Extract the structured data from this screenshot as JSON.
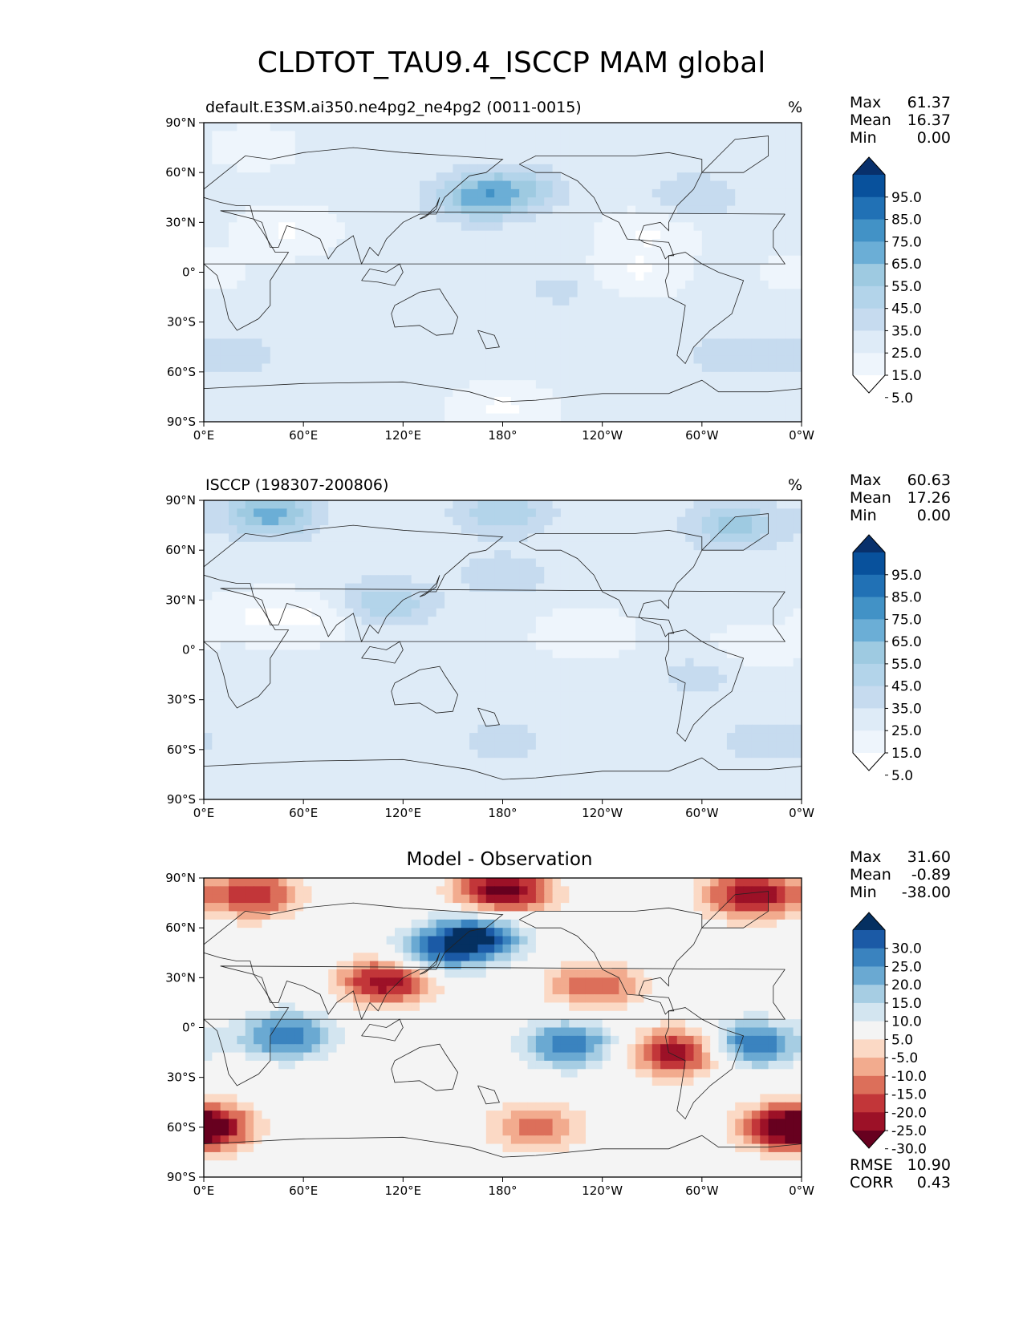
{
  "title": "CLDTOT_TAU9.4_ISCCP MAM global",
  "x_ticks": [
    "0°E",
    "60°E",
    "120°E",
    "180°",
    "120°W",
    "60°W",
    "0°W"
  ],
  "y_ticks": [
    "90°N",
    "60°N",
    "30°N",
    "0°",
    "30°S",
    "60°S",
    "90°S"
  ],
  "panels": [
    {
      "title": "default.E3SM.ai350.ne4pg2_ne4pg2 (0011-0015)",
      "units": "%",
      "stats": {
        "Max": "61.37",
        "Mean": "16.37",
        "Min": "0.00"
      }
    },
    {
      "title": "ISCCP (198307-200806)",
      "units": "%",
      "stats": {
        "Max": "60.63",
        "Mean": "17.26",
        "Min": "0.00"
      }
    },
    {
      "title": "Model - Observation",
      "units": "",
      "stats": {
        "Max": "31.60",
        "Mean": "-0.89",
        "Min": "-38.00"
      },
      "metrics": {
        "RMSE": "10.90",
        "CORR": "0.43"
      }
    }
  ],
  "colorbars": {
    "abs": {
      "labels": [
        "95.0",
        "85.0",
        "75.0",
        "65.0",
        "55.0",
        "45.0",
        "35.0",
        "25.0",
        "15.0",
        "5.0"
      ],
      "colors": [
        "#08306b",
        "#08519c",
        "#2171b5",
        "#4292c6",
        "#6baed6",
        "#9ecae1",
        "#b3d4ea",
        "#c6dbef",
        "#deebf7",
        "#eef5fc",
        "#ffffff"
      ]
    },
    "diff": {
      "labels": [
        "30.0",
        "25.0",
        "20.0",
        "15.0",
        "10.0",
        "5.0",
        "-5.0",
        "-10.0",
        "-15.0",
        "-20.0",
        "-25.0",
        "-30.0"
      ],
      "colors": [
        "#053061",
        "#1b5aa6",
        "#3a83bf",
        "#6aa9d2",
        "#a6cde3",
        "#d3e5f0",
        "#f4f4f4",
        "#fbd9c5",
        "#f2ab8e",
        "#dc6f5a",
        "#c23639",
        "#9c1127",
        "#67001f"
      ]
    }
  },
  "chart_data": [
    {
      "type": "heatmap",
      "title": "default.E3SM.ai350.ne4pg2_ne4pg2 (0011-0015)",
      "units": "%",
      "xlim": [
        0,
        360
      ],
      "ylim": [
        -90,
        90
      ],
      "levels": [
        5,
        15,
        25,
        35,
        45,
        55,
        65,
        75,
        85,
        95
      ],
      "stats": {
        "max": 61.37,
        "mean": 16.37,
        "min": 0.0
      },
      "features": [
        {
          "lon": 0,
          "lat": 0,
          "value": 12
        },
        {
          "lon": 165,
          "lat": 45,
          "value": 55
        },
        {
          "lon": 190,
          "lat": 50,
          "value": 40
        },
        {
          "lon": 295,
          "lat": 45,
          "value": 35
        },
        {
          "lon": 15,
          "lat": -50,
          "value": 32
        },
        {
          "lon": 320,
          "lat": -50,
          "value": 32
        },
        {
          "lon": 215,
          "lat": -10,
          "value": 28
        },
        {
          "lon": 270,
          "lat": 25,
          "value": 4
        },
        {
          "lon": 50,
          "lat": 25,
          "value": 4
        },
        {
          "lon": 30,
          "lat": 75,
          "value": 10
        },
        {
          "lon": 260,
          "lat": 0,
          "value": 4
        },
        {
          "lon": 180,
          "lat": -82,
          "value": 3
        }
      ]
    },
    {
      "type": "heatmap",
      "title": "ISCCP (198307-200806)",
      "units": "%",
      "xlim": [
        0,
        360
      ],
      "ylim": [
        -90,
        90
      ],
      "levels": [
        5,
        15,
        25,
        35,
        45,
        55,
        65,
        75,
        85,
        95
      ],
      "stats": {
        "max": 60.63,
        "mean": 17.26,
        "min": 0.0
      },
      "features": [
        {
          "lon": 180,
          "lat": 83,
          "value": 45
        },
        {
          "lon": 40,
          "lat": 82,
          "value": 60
        },
        {
          "lon": 320,
          "lat": 75,
          "value": 50
        },
        {
          "lon": 110,
          "lat": 28,
          "value": 45
        },
        {
          "lon": 180,
          "lat": 45,
          "value": 32
        },
        {
          "lon": 300,
          "lat": -15,
          "value": 30
        },
        {
          "lon": 180,
          "lat": -55,
          "value": 30
        },
        {
          "lon": 340,
          "lat": -55,
          "value": 32
        },
        {
          "lon": 30,
          "lat": 20,
          "value": 5
        },
        {
          "lon": 70,
          "lat": 20,
          "value": 5
        },
        {
          "lon": 230,
          "lat": 10,
          "value": 6
        },
        {
          "lon": 330,
          "lat": 0,
          "value": 8
        }
      ]
    },
    {
      "type": "heatmap",
      "title": "Model - Observation",
      "units": "",
      "xlim": [
        0,
        360
      ],
      "ylim": [
        -90,
        90
      ],
      "levels": [
        -30,
        -25,
        -20,
        -15,
        -10,
        -5,
        5,
        10,
        15,
        20,
        25,
        30
      ],
      "stats": {
        "max": 31.6,
        "mean": -0.89,
        "min": -38.0,
        "rmse": 10.9,
        "corr": 0.43
      },
      "features": [
        {
          "lon": 165,
          "lat": 55,
          "value": 30
        },
        {
          "lon": 140,
          "lat": 45,
          "value": 20
        },
        {
          "lon": 50,
          "lat": -5,
          "value": 25
        },
        {
          "lon": 220,
          "lat": -10,
          "value": 25
        },
        {
          "lon": 330,
          "lat": -10,
          "value": 27
        },
        {
          "lon": 110,
          "lat": 28,
          "value": -30
        },
        {
          "lon": 285,
          "lat": -15,
          "value": -30
        },
        {
          "lon": 235,
          "lat": 25,
          "value": -20
        },
        {
          "lon": 180,
          "lat": 82,
          "value": -35
        },
        {
          "lon": 30,
          "lat": 80,
          "value": -25
        },
        {
          "lon": 330,
          "lat": 80,
          "value": -30
        },
        {
          "lon": 350,
          "lat": -60,
          "value": -25
        },
        {
          "lon": 200,
          "lat": -60,
          "value": -18
        },
        {
          "lon": 5,
          "lat": -60,
          "value": -20
        }
      ]
    }
  ]
}
